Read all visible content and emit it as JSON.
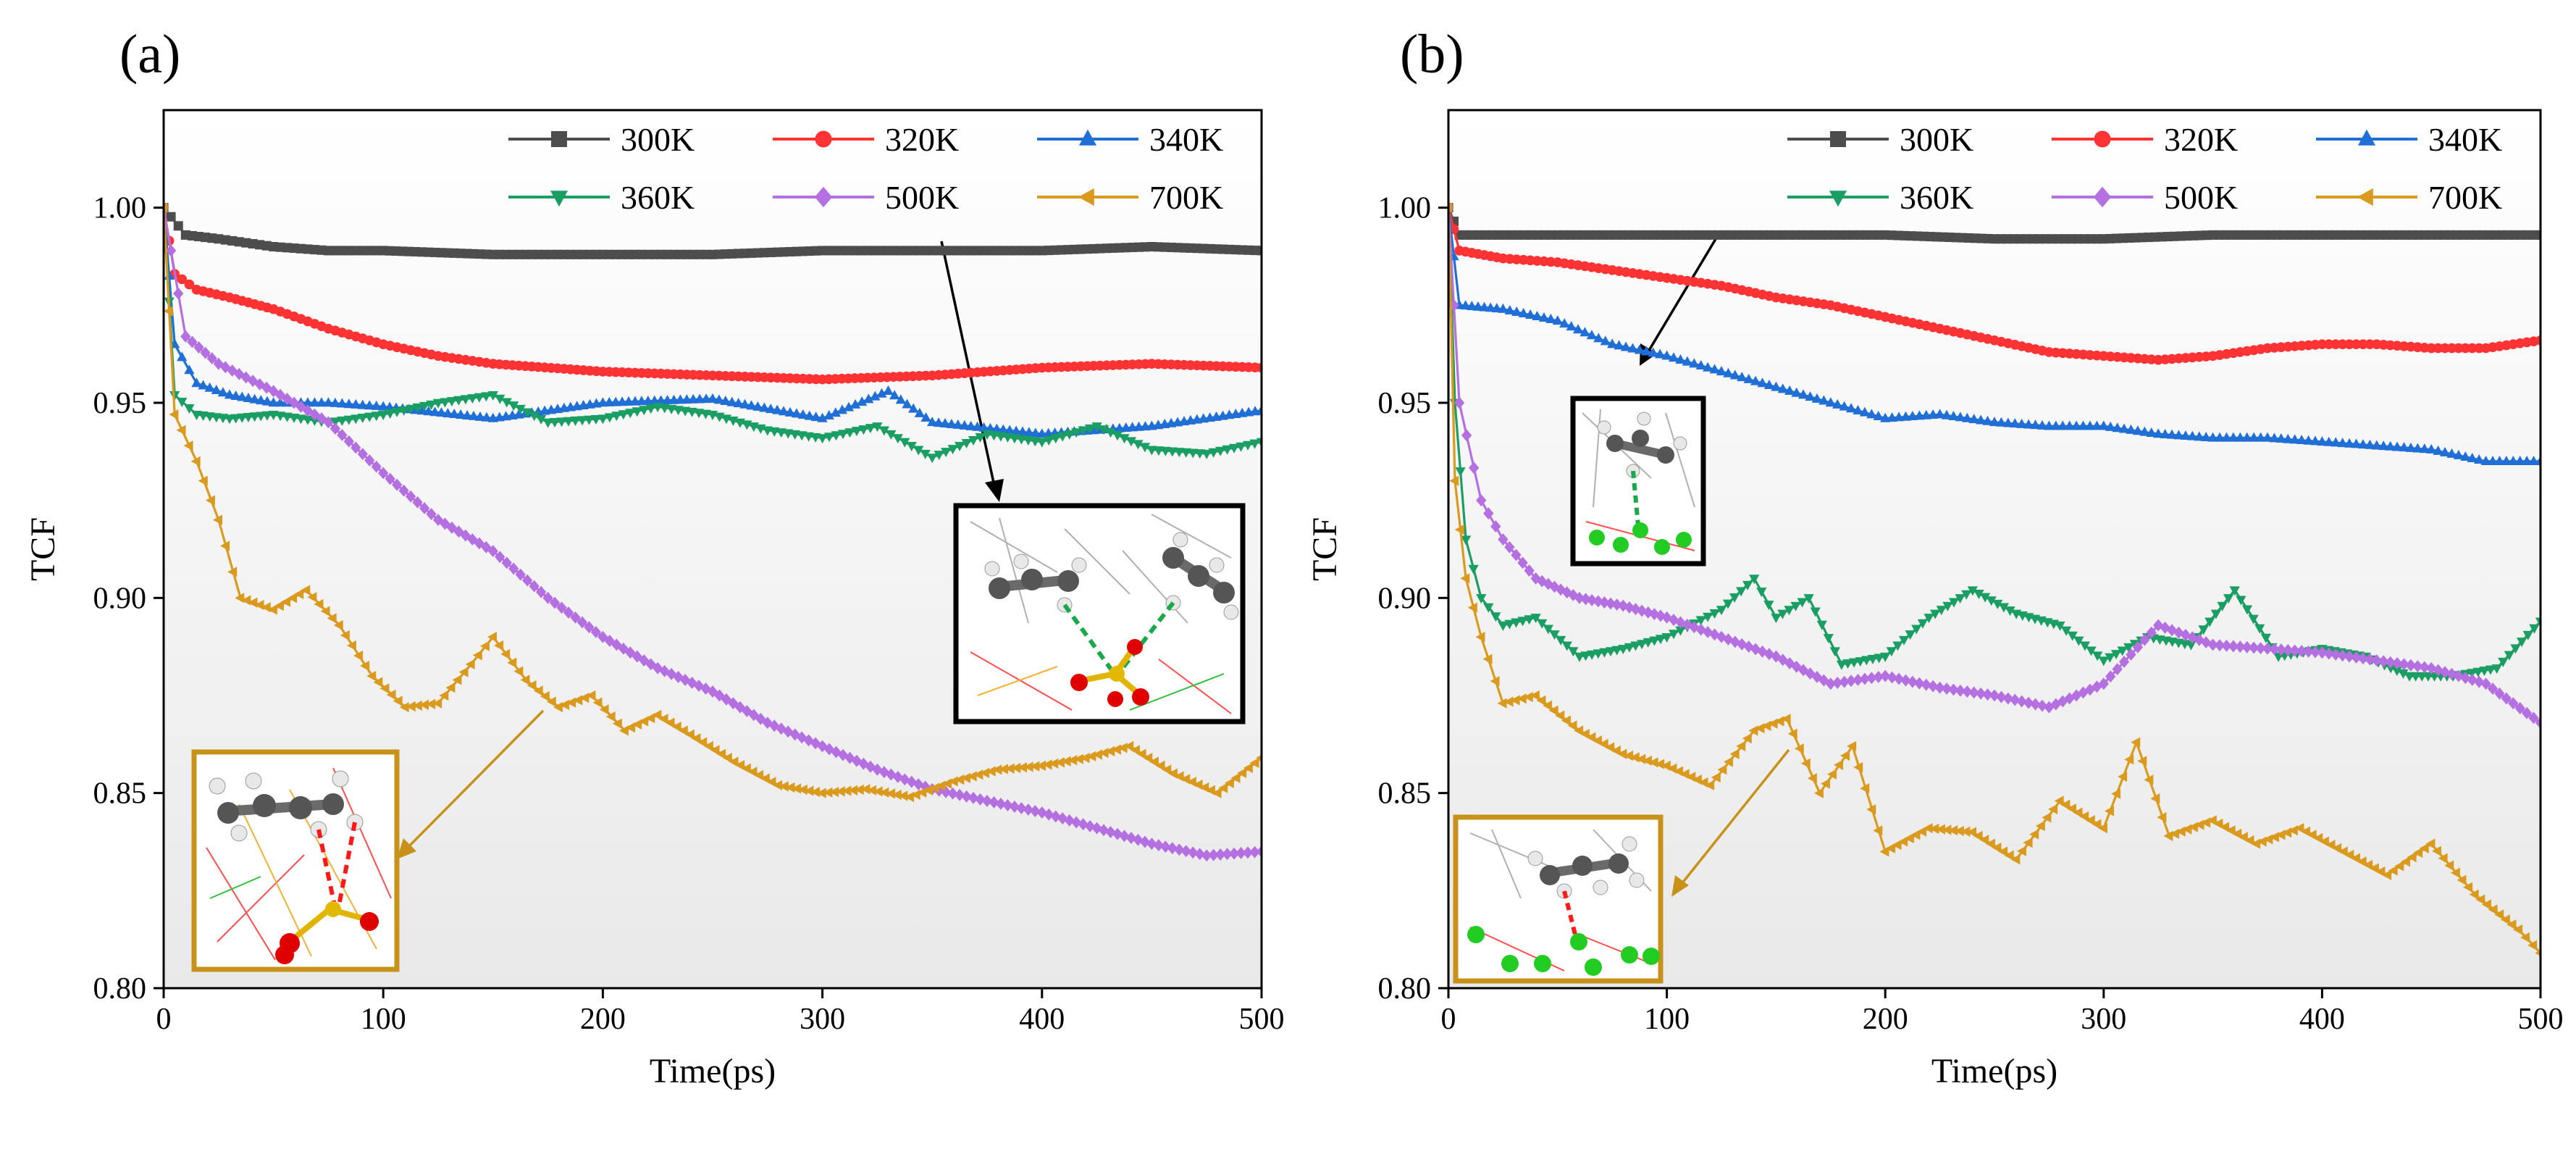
{
  "chart_data": [
    {
      "type": "line",
      "panel_label": "(a)",
      "xlabel": "Time(ps)",
      "ylabel": "TCF",
      "xlim": [
        0,
        500
      ],
      "ylim": [
        0.8,
        1.025
      ],
      "xticks": [
        0,
        100,
        200,
        300,
        400,
        500
      ],
      "yticks": [
        0.8,
        0.85,
        0.9,
        0.95,
        1.0
      ],
      "xtick_labels": [
        "0",
        "100",
        "200",
        "300",
        "400",
        "500"
      ],
      "ytick_labels": [
        "0.80",
        "0.85",
        "0.90",
        "0.95",
        "1.00"
      ],
      "legend_position": "top-right",
      "series": [
        {
          "name": "300K",
          "color": "#4d4d4d",
          "marker": "square",
          "x": [
            0,
            10,
            25,
            50,
            75,
            100,
            150,
            200,
            250,
            300,
            350,
            400,
            450,
            500
          ],
          "values": [
            1.0,
            0.993,
            0.992,
            0.99,
            0.989,
            0.989,
            0.988,
            0.988,
            0.988,
            0.989,
            0.989,
            0.989,
            0.99,
            0.989
          ]
        },
        {
          "name": "320K",
          "color": "#ff3333",
          "marker": "circle",
          "x": [
            0,
            5,
            15,
            30,
            50,
            75,
            100,
            125,
            150,
            200,
            250,
            300,
            350,
            400,
            450,
            500
          ],
          "values": [
            1.0,
            0.983,
            0.979,
            0.977,
            0.974,
            0.969,
            0.965,
            0.962,
            0.96,
            0.958,
            0.957,
            0.956,
            0.957,
            0.959,
            0.96,
            0.959
          ]
        },
        {
          "name": "340K",
          "color": "#1f6fd6",
          "marker": "triangle-up",
          "x": [
            0,
            5,
            15,
            30,
            50,
            75,
            100,
            150,
            200,
            250,
            300,
            330,
            350,
            400,
            450,
            500
          ],
          "values": [
            1.0,
            0.965,
            0.955,
            0.952,
            0.95,
            0.95,
            0.949,
            0.946,
            0.95,
            0.951,
            0.946,
            0.953,
            0.945,
            0.942,
            0.944,
            0.948
          ]
        },
        {
          "name": "360K",
          "color": "#1a9e63",
          "marker": "triangle-down",
          "x": [
            0,
            5,
            15,
            30,
            50,
            75,
            100,
            125,
            150,
            175,
            200,
            225,
            250,
            275,
            300,
            325,
            350,
            375,
            400,
            425,
            450,
            475,
            500
          ],
          "values": [
            1.0,
            0.952,
            0.947,
            0.946,
            0.947,
            0.945,
            0.947,
            0.95,
            0.952,
            0.945,
            0.946,
            0.949,
            0.947,
            0.943,
            0.941,
            0.944,
            0.936,
            0.942,
            0.94,
            0.944,
            0.938,
            0.937,
            0.94
          ]
        },
        {
          "name": "500K",
          "color": "#b46fe0",
          "marker": "diamond",
          "x": [
            0,
            10,
            25,
            50,
            75,
            100,
            125,
            150,
            175,
            200,
            225,
            250,
            275,
            300,
            325,
            350,
            375,
            400,
            425,
            450,
            475,
            500
          ],
          "values": [
            1.0,
            0.967,
            0.96,
            0.953,
            0.945,
            0.932,
            0.92,
            0.912,
            0.9,
            0.89,
            0.882,
            0.876,
            0.868,
            0.862,
            0.856,
            0.851,
            0.848,
            0.845,
            0.841,
            0.837,
            0.834,
            0.835
          ]
        },
        {
          "name": "700K",
          "color": "#d99a1e",
          "marker": "triangle-left",
          "x": [
            0,
            5,
            15,
            25,
            35,
            50,
            65,
            80,
            95,
            110,
            125,
            140,
            150,
            165,
            180,
            195,
            210,
            225,
            240,
            260,
            280,
            300,
            320,
            340,
            360,
            380,
            400,
            420,
            440,
            460,
            480,
            500
          ],
          "values": [
            1.0,
            0.947,
            0.935,
            0.92,
            0.9,
            0.897,
            0.902,
            0.893,
            0.88,
            0.872,
            0.873,
            0.883,
            0.89,
            0.879,
            0.872,
            0.875,
            0.866,
            0.87,
            0.865,
            0.858,
            0.852,
            0.85,
            0.851,
            0.849,
            0.853,
            0.856,
            0.857,
            0.859,
            0.862,
            0.855,
            0.85,
            0.859
          ]
        }
      ]
    },
    {
      "type": "line",
      "panel_label": "(b)",
      "xlabel": "Time(ps)",
      "ylabel": "TCF",
      "xlim": [
        0,
        500
      ],
      "ylim": [
        0.8,
        1.025
      ],
      "xticks": [
        0,
        100,
        200,
        300,
        400,
        500
      ],
      "yticks": [
        0.8,
        0.85,
        0.9,
        0.95,
        1.0
      ],
      "xtick_labels": [
        "0",
        "100",
        "200",
        "300",
        "400",
        "500"
      ],
      "ytick_labels": [
        "0.80",
        "0.85",
        "0.90",
        "0.95",
        "1.00"
      ],
      "legend_position": "top-right",
      "series": [
        {
          "name": "300K",
          "color": "#4d4d4d",
          "marker": "square",
          "x": [
            0,
            5,
            50,
            100,
            150,
            200,
            250,
            300,
            350,
            400,
            450,
            500
          ],
          "values": [
            1.0,
            0.993,
            0.993,
            0.993,
            0.993,
            0.993,
            0.992,
            0.992,
            0.993,
            0.993,
            0.993,
            0.993
          ]
        },
        {
          "name": "320K",
          "color": "#ff3333",
          "marker": "circle",
          "x": [
            0,
            5,
            25,
            50,
            75,
            100,
            125,
            150,
            175,
            200,
            225,
            250,
            275,
            300,
            325,
            350,
            375,
            400,
            425,
            450,
            475,
            500
          ],
          "values": [
            1.0,
            0.989,
            0.987,
            0.986,
            0.984,
            0.982,
            0.98,
            0.977,
            0.975,
            0.972,
            0.969,
            0.966,
            0.963,
            0.962,
            0.961,
            0.962,
            0.964,
            0.965,
            0.965,
            0.964,
            0.964,
            0.966
          ]
        },
        {
          "name": "340K",
          "color": "#1f6fd6",
          "marker": "triangle-up",
          "x": [
            0,
            5,
            25,
            50,
            75,
            100,
            125,
            150,
            175,
            200,
            225,
            250,
            275,
            300,
            325,
            350,
            375,
            400,
            425,
            450,
            475,
            500
          ],
          "values": [
            1.0,
            0.975,
            0.974,
            0.971,
            0.965,
            0.962,
            0.958,
            0.954,
            0.95,
            0.946,
            0.947,
            0.945,
            0.944,
            0.944,
            0.942,
            0.941,
            0.941,
            0.94,
            0.939,
            0.938,
            0.935,
            0.935
          ]
        },
        {
          "name": "360K",
          "color": "#1a9e63",
          "marker": "triangle-down",
          "x": [
            0,
            3,
            8,
            15,
            25,
            40,
            60,
            80,
            100,
            125,
            140,
            150,
            165,
            180,
            200,
            220,
            240,
            260,
            280,
            300,
            320,
            340,
            360,
            380,
            400,
            420,
            440,
            460,
            480,
            500
          ],
          "values": [
            1.0,
            0.95,
            0.915,
            0.9,
            0.893,
            0.895,
            0.885,
            0.887,
            0.89,
            0.897,
            0.905,
            0.895,
            0.9,
            0.883,
            0.885,
            0.895,
            0.902,
            0.896,
            0.893,
            0.884,
            0.89,
            0.888,
            0.902,
            0.885,
            0.887,
            0.885,
            0.88,
            0.88,
            0.882,
            0.894
          ]
        },
        {
          "name": "500K",
          "color": "#b46fe0",
          "marker": "diamond",
          "x": [
            0,
            5,
            15,
            25,
            40,
            60,
            80,
            100,
            125,
            150,
            175,
            200,
            225,
            250,
            275,
            300,
            325,
            350,
            375,
            400,
            425,
            450,
            475,
            500
          ],
          "values": [
            1.0,
            0.95,
            0.925,
            0.915,
            0.905,
            0.9,
            0.898,
            0.895,
            0.89,
            0.885,
            0.878,
            0.88,
            0.877,
            0.875,
            0.872,
            0.878,
            0.893,
            0.888,
            0.887,
            0.886,
            0.884,
            0.882,
            0.878,
            0.868
          ]
        },
        {
          "name": "700K",
          "color": "#d99a1e",
          "marker": "triangle-left",
          "x": [
            0,
            3,
            8,
            15,
            25,
            40,
            60,
            80,
            100,
            120,
            140,
            155,
            170,
            185,
            200,
            220,
            240,
            260,
            280,
            300,
            315,
            330,
            350,
            370,
            390,
            410,
            430,
            450,
            470,
            490,
            500
          ],
          "values": [
            1.0,
            0.93,
            0.905,
            0.89,
            0.873,
            0.875,
            0.866,
            0.86,
            0.857,
            0.852,
            0.866,
            0.869,
            0.85,
            0.862,
            0.835,
            0.841,
            0.84,
            0.833,
            0.848,
            0.841,
            0.863,
            0.839,
            0.843,
            0.837,
            0.841,
            0.835,
            0.829,
            0.837,
            0.824,
            0.815,
            0.809
          ]
        }
      ]
    }
  ]
}
